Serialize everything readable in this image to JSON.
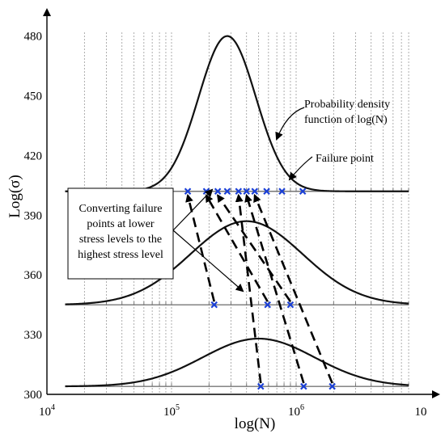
{
  "chart_data": {
    "type": "line",
    "xlabel": "log(N)",
    "ylabel": "Log(σ)",
    "x_ticks": [
      {
        "base": "10",
        "exp": "4"
      },
      {
        "base": "10",
        "exp": "5"
      },
      {
        "base": "10",
        "exp": "6"
      },
      {
        "base": "10",
        "exp": ""
      }
    ],
    "y_ticks": [
      "300",
      "330",
      "360",
      "390",
      "420",
      "450",
      "480"
    ],
    "xlim": [
      10000,
      10000000
    ],
    "ylim": [
      300,
      490
    ],
    "x_scale": "log",
    "grid": "vertical dotted",
    "series": [
      {
        "baseline": 345,
        "pdf_peak_N": 400000,
        "pdf_height": 42,
        "pdf_width": 0.45
      },
      {
        "baseline": 304,
        "pdf_peak_N": 500000,
        "pdf_height": 24,
        "pdf_width": 0.45
      },
      {
        "baseline": 402,
        "pdf_peak_N": 280000,
        "pdf_height": 78,
        "pdf_width": 0.23
      }
    ],
    "failure_points": [
      {
        "N": 220000,
        "y": 345
      },
      {
        "N": 590000,
        "y": 345
      },
      {
        "N": 900000,
        "y": 345
      },
      {
        "N": 520000,
        "y": 304
      },
      {
        "N": 1150000,
        "y": 304
      },
      {
        "N": 1950000,
        "y": 304
      },
      {
        "N": 135000,
        "y": 402
      },
      {
        "N": 190000,
        "y": 402
      },
      {
        "N": 235000,
        "y": 402
      },
      {
        "N": 280000,
        "y": 402
      },
      {
        "N": 345000,
        "y": 402
      },
      {
        "N": 400000,
        "y": 402
      },
      {
        "N": 465000,
        "y": 402
      },
      {
        "N": 580000,
        "y": 402
      },
      {
        "N": 770000,
        "y": 402
      },
      {
        "N": 1130000,
        "y": 402
      }
    ],
    "conversions": [
      {
        "from": [
          220000,
          345
        ],
        "to": [
          135000,
          402
        ]
      },
      {
        "from": [
          590000,
          345
        ],
        "to": [
          190000,
          402
        ]
      },
      {
        "from": [
          900000,
          345
        ],
        "to": [
          235000,
          402
        ]
      },
      {
        "from": [
          520000,
          304
        ],
        "to": [
          345000,
          402
        ]
      },
      {
        "from": [
          1150000,
          304
        ],
        "to": [
          400000,
          402
        ]
      },
      {
        "from": [
          1950000,
          304
        ],
        "to": [
          465000,
          402
        ]
      }
    ]
  },
  "annotations": {
    "pdf_label": [
      "Probability density",
      "function of log(N)"
    ],
    "failure_label": "Failure point",
    "converting_label": [
      "Converting failure",
      "points at lower",
      "stress levels to the",
      "highest stress level"
    ]
  }
}
